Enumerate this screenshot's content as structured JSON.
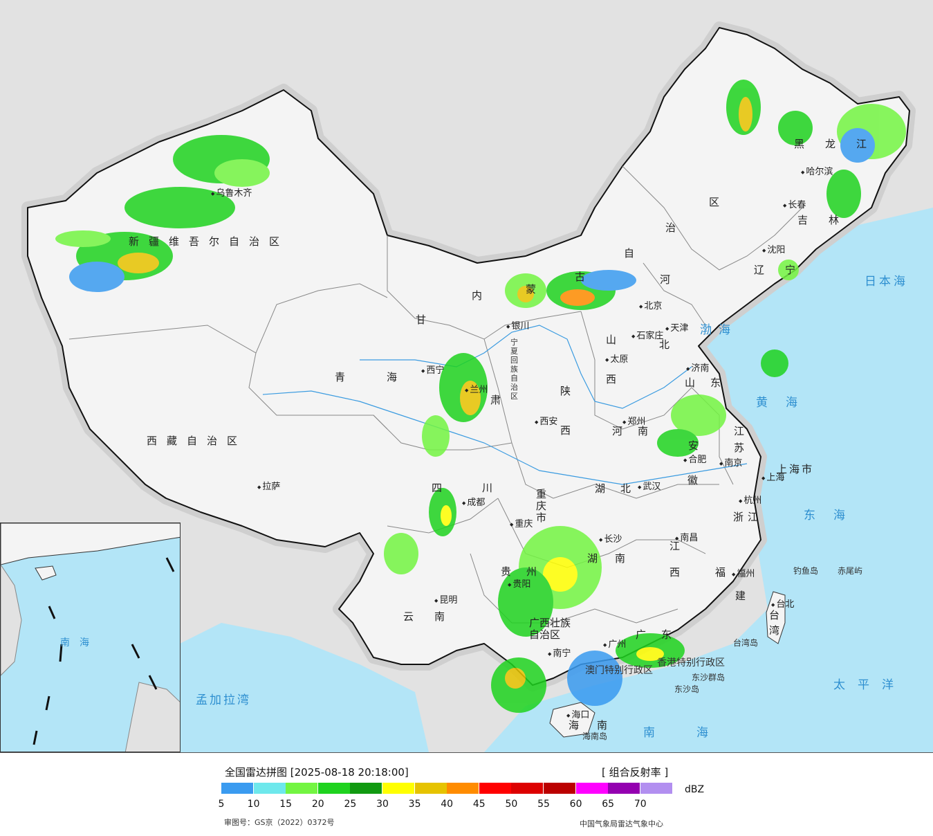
{
  "legend": {
    "title": "全国雷达拼图 [2025-08-18 20:18:00]",
    "product": "[ 组合反射率 ]",
    "unit": "dBZ",
    "colors": [
      "#3a9bf0",
      "#6ee8ec",
      "#73f542",
      "#1fd31f",
      "#119a11",
      "#ffff00",
      "#e6c300",
      "#ff8c00",
      "#ff0000",
      "#dd0000",
      "#bb0000",
      "#ff00ff",
      "#9400b0",
      "#b28ff0"
    ],
    "ticks": [
      "5",
      "10",
      "15",
      "20",
      "25",
      "30",
      "35",
      "40",
      "45",
      "50",
      "55",
      "60",
      "65",
      "70"
    ],
    "approval": "审图号：GS京（2022）0372号",
    "source": "中国气象局雷达气象中心"
  },
  "provinces": {
    "xinjiang": "新疆维吾尔自治区",
    "xizang": "西藏自治区",
    "qinghai": "青海",
    "gansu": "甘",
    "gansu2": "肃",
    "neimenggu_1": "内",
    "neimenggu_2": "蒙",
    "neimenggu_3": "古",
    "neimenggu_4": "自",
    "neimenggu_5": "治",
    "neimenggu_6": "区",
    "heilongjiang": "黑龙江",
    "jilin": "吉林",
    "liaoning": "辽宁",
    "hebei_1": "河",
    "hebei_2": "北",
    "shanxi_1": "山",
    "shanxi_2": "西",
    "shandong": "山东",
    "ningxia": "宁夏回族自治区",
    "shaanxi_1": "陕",
    "shaanxi_2": "西",
    "henan": "河南",
    "jiangsu_1": "江",
    "jiangsu_2": "苏",
    "anhui_1": "安",
    "anhui_2": "徽",
    "shanghai": "上海市",
    "zhejiang": "浙江",
    "hubei": "湖北",
    "sichuan_1": "四",
    "sichuan_2": "川",
    "chongqing": "重庆市",
    "hunan_1": "湖",
    "hunan_2": "南",
    "jiangxi_1": "江",
    "jiangxi_2": "西",
    "fujian_1": "福",
    "fujian_2": "建",
    "guizhou": "贵州",
    "yunnan": "云南",
    "guangxi": "广西壮族自治区",
    "guangdong": "广东",
    "hainan": "海南",
    "taiwan": "台湾",
    "hongkong": "香港特别行政区",
    "macau": "澳门特别行政区"
  },
  "cities": [
    "乌鲁木齐",
    "哈尔滨",
    "长春",
    "沈阳",
    "北京",
    "天津",
    "石家庄",
    "太原",
    "济南",
    "西宁",
    "兰州",
    "银川",
    "西安",
    "郑州",
    "合肥",
    "南京",
    "上海",
    "杭州",
    "武汉",
    "成都",
    "重庆",
    "长沙",
    "南昌",
    "福州",
    "台北",
    "贵阳",
    "昆明",
    "南宁",
    "广州",
    "海口",
    "拉萨"
  ],
  "seas": {
    "bohai": "渤海",
    "huanghai": "黄海",
    "donghai": "东海",
    "nanhai": "南海",
    "riben": "日本海",
    "taipingyang": "太平洋",
    "mengjiala": "孟加拉湾",
    "nanhai_inset": "南海"
  },
  "islands": {
    "diaoyu": "钓鱼岛",
    "chiwei": "赤尾屿",
    "taiwan_island": "台湾岛",
    "dongsha": "东沙群岛",
    "dongsha_dao": "东沙岛",
    "hainan_dao": "海南岛"
  }
}
